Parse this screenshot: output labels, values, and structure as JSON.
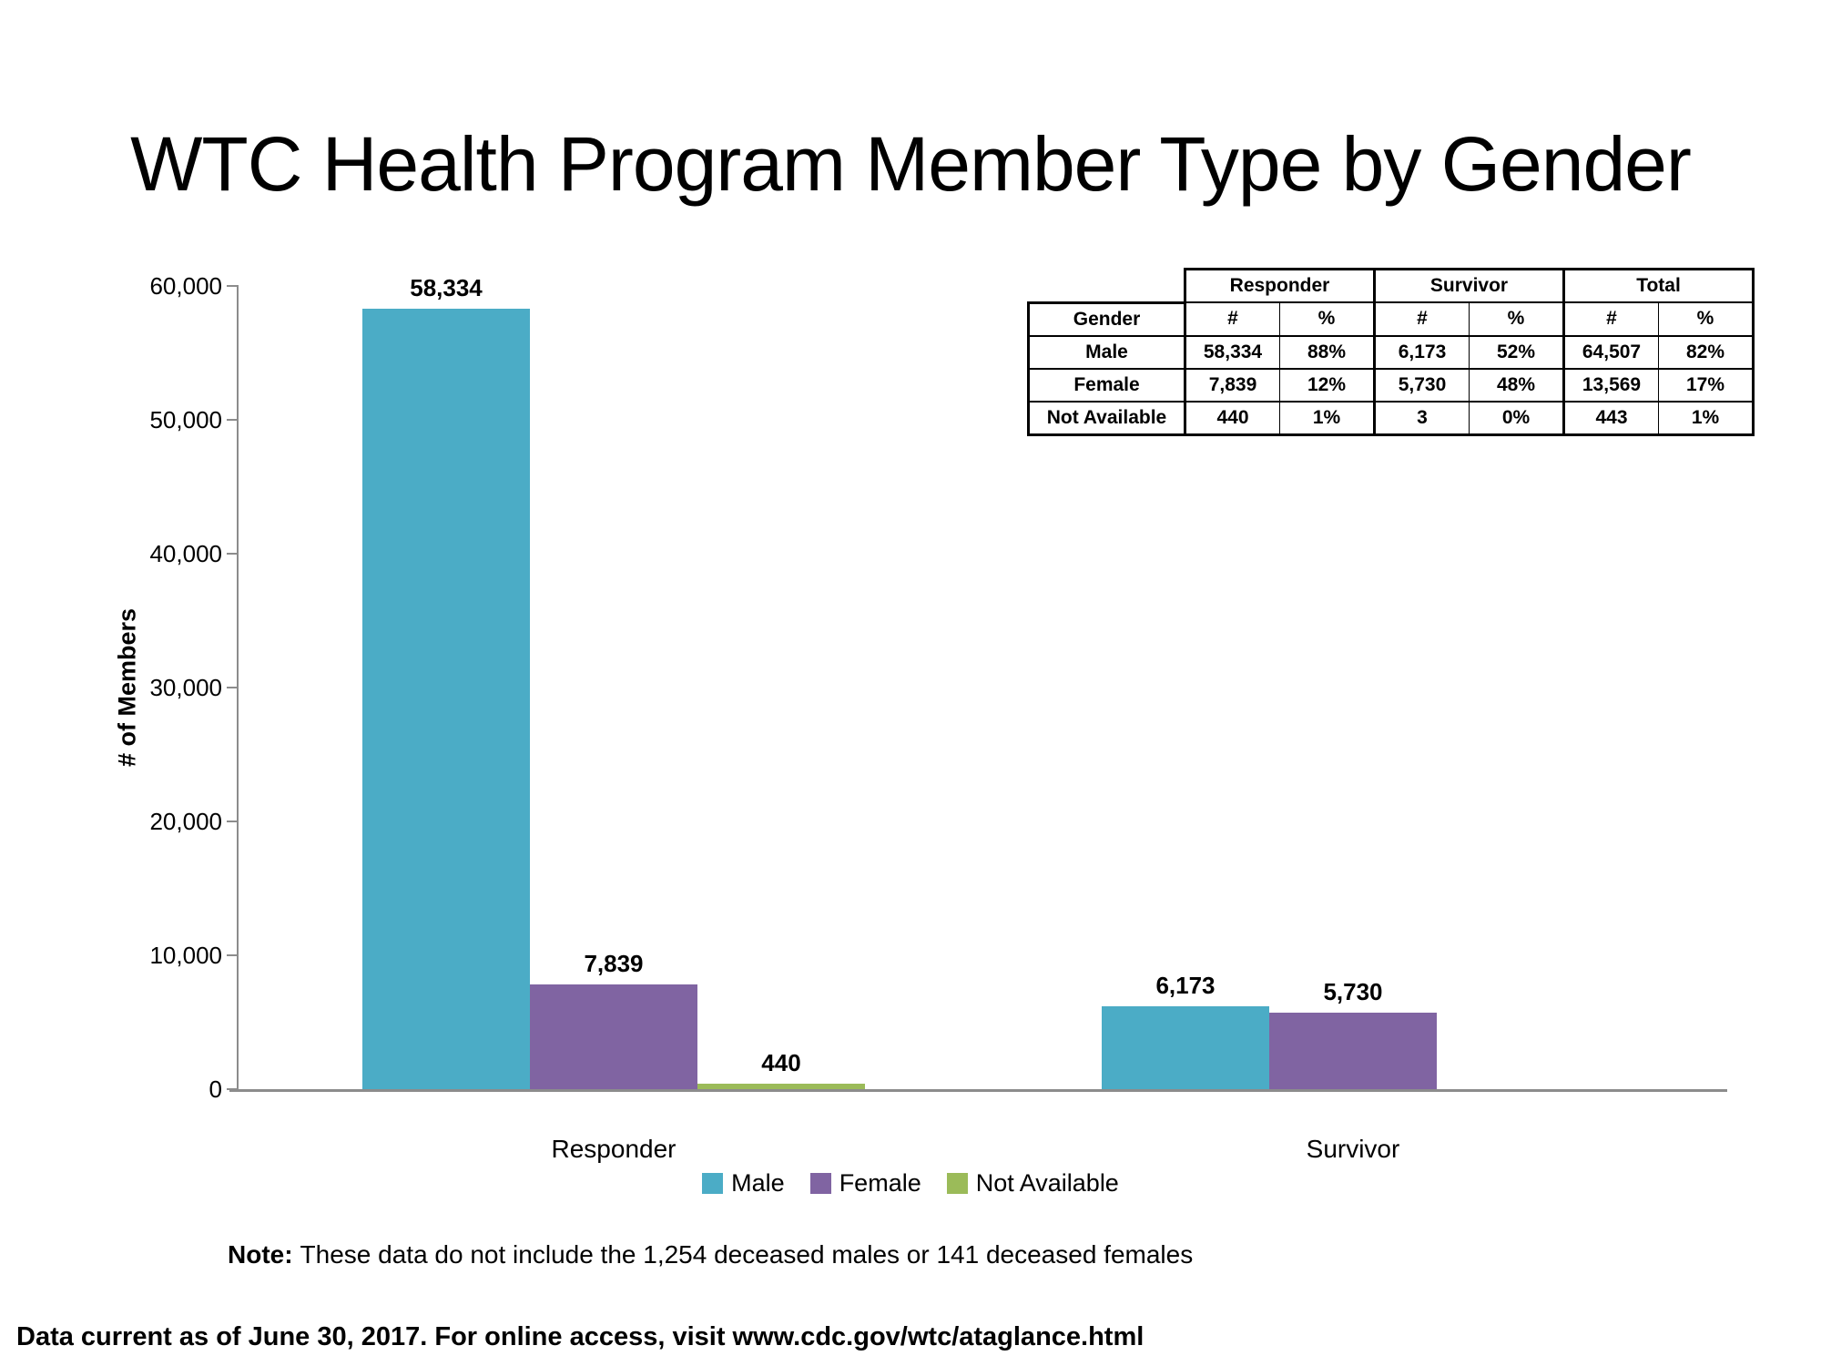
{
  "page": {
    "background": "#FFFFFF",
    "title": "WTC Health Program Member Type by Gender"
  },
  "chart_data": {
    "type": "bar",
    "title": "WTC Health Program Member Type by Gender",
    "categories": [
      "Responder",
      "Survivor"
    ],
    "series": [
      {
        "name": "Male",
        "color": "#4BACC6",
        "values": [
          58334,
          6173
        ],
        "labels": [
          "58,334",
          "6,173"
        ]
      },
      {
        "name": "Female",
        "color": "#8064A2",
        "values": [
          7839,
          5730
        ],
        "labels": [
          "7,839",
          "5,730"
        ]
      },
      {
        "name": "Not Available",
        "color": "#9BBB59",
        "values": [
          440,
          null
        ],
        "labels": [
          "440",
          null
        ]
      }
    ],
    "xlabel": "",
    "ylabel": "# of Members",
    "ylim": [
      0,
      60000
    ],
    "ytick_interval": 10000,
    "yticks": [
      "0",
      "10,000",
      "20,000",
      "30,000",
      "40,000",
      "50,000",
      "60,000"
    ],
    "gridlines": false,
    "legend_position": "bottom",
    "axis_color": "#8C8C8C"
  },
  "summary_table": {
    "row_header_label": "Gender",
    "col_groups": [
      "Responder",
      "Survivor",
      "Total"
    ],
    "sub_headers": [
      "#",
      "%"
    ],
    "rows": [
      {
        "gender": "Male",
        "responder_n": "58,334",
        "responder_pct": "88%",
        "survivor_n": "6,173",
        "survivor_pct": "52%",
        "total_n": "64,507",
        "total_pct": "82%"
      },
      {
        "gender": "Female",
        "responder_n": "7,839",
        "responder_pct": "12%",
        "survivor_n": "5,730",
        "survivor_pct": "48%",
        "total_n": "13,569",
        "total_pct": "17%"
      },
      {
        "gender": "Not Available",
        "responder_n": "440",
        "responder_pct": "1%",
        "survivor_n": "3",
        "survivor_pct": "0%",
        "total_n": "443",
        "total_pct": "1%"
      }
    ]
  },
  "note": {
    "label": "Note:",
    "text": "These data do not include the 1,254 deceased males or 141 deceased females"
  },
  "footer": {
    "text": "Data current as of June 30, 2017. For online access, visit www.cdc.gov/wtc/ataglance.html"
  }
}
